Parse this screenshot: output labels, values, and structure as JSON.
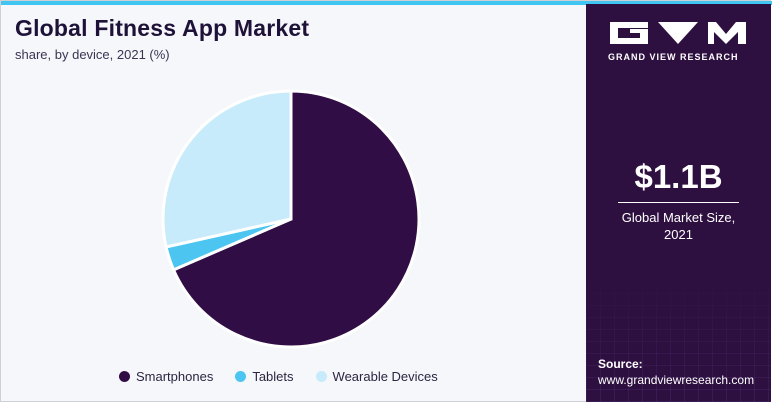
{
  "chart_data": {
    "type": "pie",
    "title": "Global Fitness App Market",
    "subtitle": "share, by device, 2021 (%)",
    "series": [
      {
        "name": "Smartphones",
        "value": 68.5,
        "color": "#310d45"
      },
      {
        "name": "Tablets",
        "value": 3.0,
        "color": "#4cc6f0"
      },
      {
        "name": "Wearable Devices",
        "value": 28.5,
        "color": "#c7ebfa"
      }
    ],
    "legend_position": "bottom"
  },
  "panel": {
    "brand": "GRAND VIEW RESEARCH",
    "logo_icon": "gvr-logo-icon",
    "market_size": "$1.1B",
    "market_label_line1": "Global Market Size,",
    "market_label_line2": "2021",
    "source_label": "Source:",
    "source_url": "www.grandviewresearch.com"
  },
  "colors": {
    "accent_bar": "#41c6f2",
    "panel_bg": "#2e1040"
  }
}
